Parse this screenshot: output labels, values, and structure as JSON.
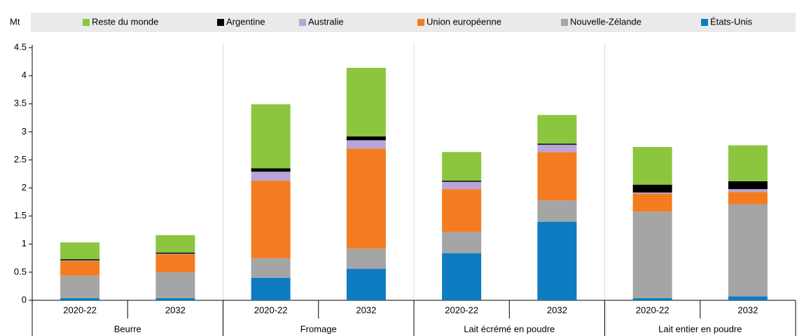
{
  "chart_data": {
    "type": "stacked_bar",
    "y_label": "Mt",
    "categories": [
      "2020-22",
      "2032",
      "2020-22",
      "2032",
      "2020-22",
      "2032",
      "2020-22",
      "2032"
    ],
    "groups": [
      "Beurre",
      "Fromage",
      "Lait écrémé en poudre",
      "Lait entier en poudre"
    ],
    "series": [
      {
        "name": "États-Unis",
        "color": "#0f7bc1",
        "values": [
          0.04,
          0.04,
          0.4,
          0.56,
          0.84,
          1.4,
          0.04,
          0.07
        ]
      },
      {
        "name": "Nouvelle-Zélande",
        "color": "#a5a5a5",
        "values": [
          0.4,
          0.46,
          0.35,
          0.36,
          0.38,
          0.38,
          1.54,
          1.64
        ]
      },
      {
        "name": "Union européenne",
        "color": "#f47c20",
        "values": [
          0.26,
          0.32,
          1.38,
          1.78,
          0.76,
          0.86,
          0.32,
          0.22
        ]
      },
      {
        "name": "Australie",
        "color": "#b7a6d6",
        "values": [
          0.01,
          0.01,
          0.16,
          0.15,
          0.13,
          0.13,
          0.02,
          0.05
        ]
      },
      {
        "name": "Argentine",
        "color": "#000000",
        "values": [
          0.02,
          0.02,
          0.06,
          0.07,
          0.02,
          0.02,
          0.14,
          0.14
        ]
      },
      {
        "name": "Reste du monde",
        "color": "#8cc63f",
        "values": [
          0.3,
          0.31,
          1.14,
          1.22,
          0.51,
          0.51,
          0.67,
          0.64
        ]
      }
    ],
    "ylim": [
      0,
      4.5
    ],
    "yticks": [
      0,
      0.5,
      1,
      1.5,
      2,
      2.5,
      3,
      3.5,
      4,
      4.5
    ]
  }
}
